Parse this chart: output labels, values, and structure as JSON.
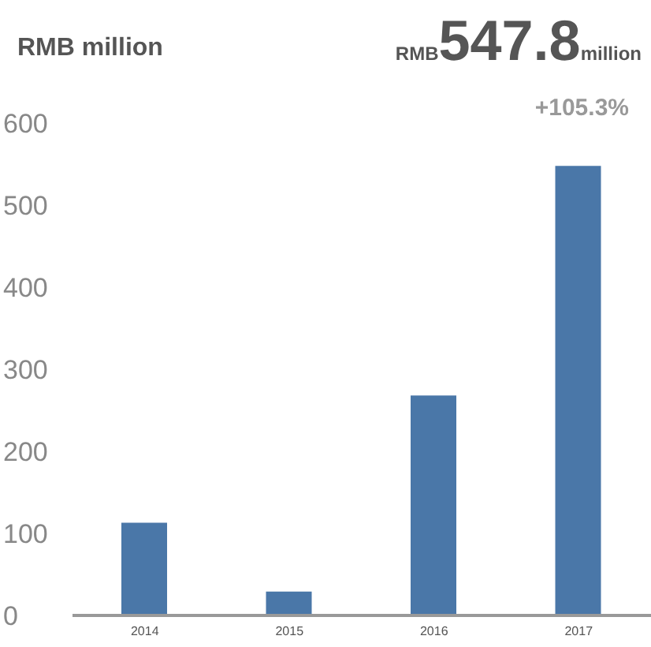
{
  "chart_data": {
    "type": "bar",
    "ylabel": "RMB million",
    "annotations": [
      "RMB",
      "547.8",
      "million",
      "+105.3%"
    ],
    "categories": [
      "2014",
      "2015",
      "2016",
      "2017"
    ],
    "values": [
      113,
      29,
      268,
      547.8
    ],
    "color": "#4a77a8",
    "ylim": [
      0,
      600
    ],
    "yticks": [
      0,
      100,
      200,
      300,
      400,
      500,
      600
    ],
    "grid": false
  }
}
